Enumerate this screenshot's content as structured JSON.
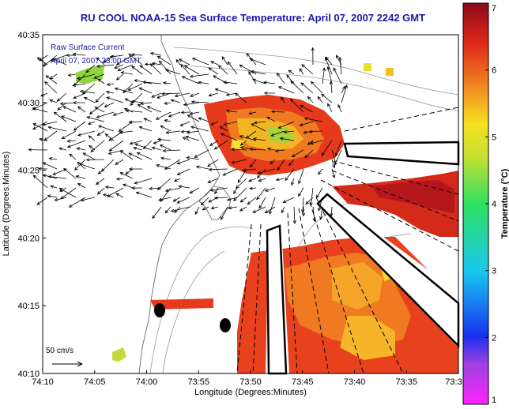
{
  "title": "RU COOL  NOAA-15  Sea Surface Temperature:  April 07, 2007 2242 GMT",
  "annotation": {
    "line1": "Raw Surface Current",
    "line2": "April 07, 2007 23:00 GMT"
  },
  "scale_label": "50 cm/s",
  "axes": {
    "xlabel": "Longitude (Degrees:Minutes)",
    "ylabel": "Latitude (Degrees:Minutes)",
    "x_ticks": [
      "74:10",
      "74:05",
      "74:00",
      "73:55",
      "73:50",
      "73:45",
      "73:40",
      "73:35",
      "73:3"
    ],
    "y_ticks": [
      "40:35",
      "40:30",
      "40:25",
      "40:20",
      "40:15",
      "40:10"
    ]
  },
  "colorbar": {
    "label": "Temperature (°C)",
    "ticks": [
      "7",
      "6",
      "5",
      "4",
      "3",
      "2",
      "1"
    ],
    "range": [
      1,
      7
    ]
  },
  "chart_data": {
    "type": "heatmap",
    "title": "RU COOL  NOAA-15  Sea Surface Temperature:  April 07, 2007 2242 GMT",
    "xlabel": "Longitude (Degrees:Minutes)",
    "ylabel": "Latitude (Degrees:Minutes)",
    "colorbar_label": "Temperature (°C)",
    "value_range": [
      1,
      7
    ],
    "overlay": "surface current vectors"
  }
}
